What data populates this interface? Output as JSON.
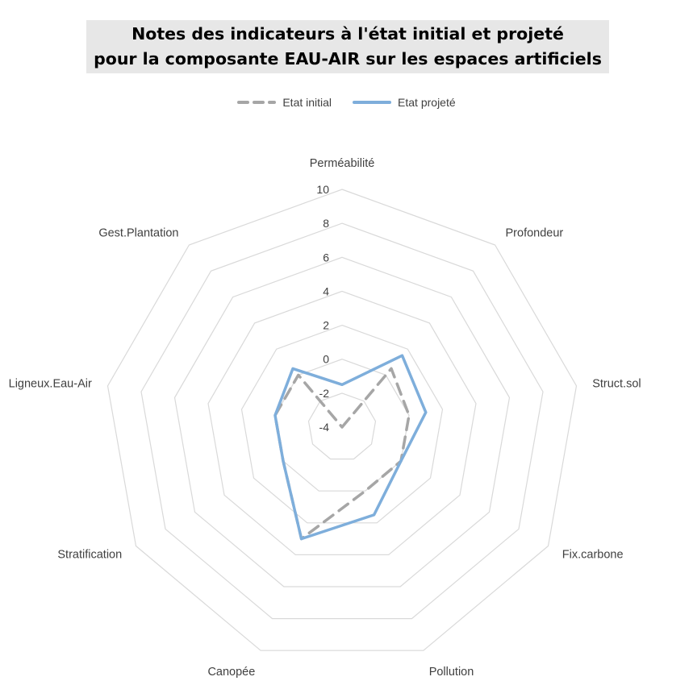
{
  "title_lines": [
    "Notes des indicateurs à l'état initial et projeté",
    "pour la composante EAU-AIR sur les espaces artificiels"
  ],
  "colors": {
    "initial": "#a6a6a6",
    "projete": "#7eaedb",
    "grid": "#d9d9d9",
    "text": "#404040",
    "title_bg": "#e7e7e7"
  },
  "chart_data": {
    "type": "radar",
    "title": "Notes des indicateurs à l'état initial et projeté pour la composante EAU-AIR sur les espaces artificiels",
    "categories": [
      "Perméabilité",
      "Profondeur",
      "Struct.sol",
      "Fix.carbone",
      "Pollution",
      "Canopée",
      "Stratification",
      "Ligneux.Eau-Air",
      "Gest.Plantation"
    ],
    "rlim": [
      -4,
      10
    ],
    "ticks": [
      -4,
      -2,
      0,
      2,
      4,
      6,
      8,
      10
    ],
    "grid": true,
    "legend_position": "top",
    "series": [
      {
        "name": "Etat initial",
        "style": "dashed",
        "values": [
          -4,
          0.5,
          0,
          0,
          0,
          3,
          0,
          0,
          0
        ]
      },
      {
        "name": "Etat projeté",
        "style": "solid",
        "values": [
          -1.5,
          1.5,
          1,
          0,
          1.5,
          3,
          0,
          0,
          0.5
        ]
      }
    ]
  }
}
